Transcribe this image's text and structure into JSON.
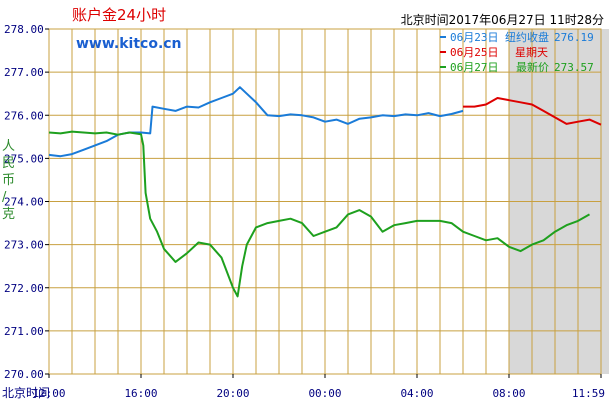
{
  "header": {
    "title": "账户金24小时",
    "site": "www.kitco.cn",
    "timestamp": "北京时间2017年06月27日 11时28分"
  },
  "legend": {
    "rows": [
      {
        "date": "06月23日",
        "label": "纽约收盘",
        "value": "276.19",
        "color": "#1a7bd8"
      },
      {
        "date": "06月25日",
        "label": "星期天",
        "value": "",
        "color": "#dd0000"
      },
      {
        "date": "06月27日",
        "label": "最新价",
        "value": "273.57",
        "color": "#1ea01e"
      }
    ]
  },
  "colors": {
    "title": "#dd0000",
    "site": "#1a5fd0",
    "axis_text": "#000080",
    "ylabel": "#2e8b2e",
    "grid": "#c8a040",
    "shade": "#d8d8d8"
  },
  "chart_data": {
    "type": "line",
    "ylabel": "人民币/克",
    "xlabel": "北京时间",
    "ylim": [
      270,
      278
    ],
    "yticks": [
      "278.00",
      "277.00",
      "276.00",
      "275.00",
      "274.00",
      "273.00",
      "272.00",
      "271.00",
      "270.00"
    ],
    "xticks": [
      "12:00",
      "16:00",
      "20:00",
      "00:00",
      "04:00",
      "08:00",
      "11:59"
    ],
    "x_unit": "hours after 12:00 Beijing time",
    "shaded_range": [
      20.0,
      24.8
    ],
    "series": [
      {
        "name": "06月23日",
        "color": "#1a7bd8",
        "x": [
          0,
          0.5,
          1,
          1.5,
          2,
          2.5,
          3,
          3.5,
          4,
          4.4,
          4.5,
          5,
          5.5,
          6,
          6.5,
          7,
          7.5,
          8,
          8.3,
          8.6,
          9,
          9.5,
          10,
          10.5,
          11,
          11.5,
          12,
          12.5,
          13,
          13.5,
          14,
          14.5,
          15,
          15.5,
          16,
          16.5,
          17,
          17.5,
          18
        ],
        "values": [
          275.08,
          275.05,
          275.1,
          275.2,
          275.3,
          275.4,
          275.55,
          275.6,
          275.6,
          275.58,
          276.2,
          276.15,
          276.1,
          276.2,
          276.18,
          276.3,
          276.4,
          276.5,
          276.65,
          276.5,
          276.3,
          276.0,
          275.98,
          276.02,
          276.0,
          275.95,
          275.85,
          275.9,
          275.8,
          275.92,
          275.95,
          276.0,
          275.98,
          276.02,
          276.0,
          276.05,
          275.98,
          276.03,
          276.1
        ]
      },
      {
        "name": "06月25日",
        "color": "#dd0000",
        "x": [
          18,
          18.5,
          19,
          19.5,
          20,
          20.5,
          21,
          21.5,
          22,
          22.5,
          23,
          23.5,
          24
        ],
        "values": [
          276.2,
          276.2,
          276.25,
          276.4,
          276.35,
          276.3,
          276.25,
          276.1,
          275.95,
          275.8,
          275.85,
          275.9,
          275.78
        ]
      },
      {
        "name": "06月27日",
        "color": "#1ea01e",
        "x": [
          0,
          0.5,
          1,
          1.5,
          2,
          2.5,
          3,
          3.5,
          4,
          4.1,
          4.2,
          4.4,
          4.7,
          5,
          5.5,
          6,
          6.5,
          7,
          7.5,
          8,
          8.2,
          8.4,
          8.6,
          9,
          9.5,
          10,
          10.5,
          11,
          11.5,
          12,
          12.5,
          13,
          13.5,
          14,
          14.5,
          15,
          15.5,
          16,
          16.5,
          17,
          17.5,
          18,
          18.5,
          19,
          19.5,
          20,
          20.5,
          21,
          21.5,
          22,
          22.5,
          23,
          23.5
        ],
        "values": [
          275.6,
          275.58,
          275.62,
          275.6,
          275.58,
          275.6,
          275.55,
          275.6,
          275.56,
          275.3,
          274.2,
          273.6,
          273.3,
          272.9,
          272.6,
          272.8,
          273.05,
          273.0,
          272.7,
          272.0,
          271.8,
          272.5,
          273.0,
          273.4,
          273.5,
          273.55,
          273.6,
          273.5,
          273.2,
          273.3,
          273.4,
          273.7,
          273.8,
          273.65,
          273.3,
          273.45,
          273.5,
          273.55,
          273.55,
          273.55,
          273.5,
          273.3,
          273.2,
          273.1,
          273.15,
          272.95,
          272.85,
          273.0,
          273.1,
          273.3,
          273.45,
          273.55,
          273.7
        ]
      }
    ]
  }
}
